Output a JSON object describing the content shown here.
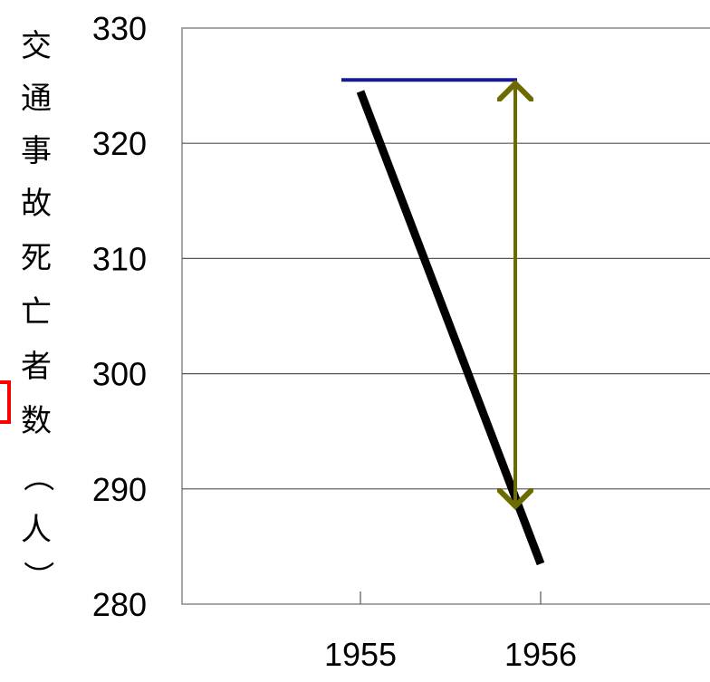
{
  "chart_data": {
    "type": "line",
    "title": "",
    "xlabel": "",
    "ylabel": "交通事故死亡者数（人）",
    "categories": [
      "1955",
      "1956"
    ],
    "series": [
      {
        "values": [
          324.5,
          283.5
        ],
        "color": "#000000"
      }
    ],
    "ylim": [
      280,
      330
    ],
    "yticks": [
      280,
      290,
      300,
      310,
      320,
      330
    ],
    "grid": true,
    "annotations": [
      {
        "type": "horizontal-line",
        "y": 325.5,
        "color": "#1a1a8c"
      },
      {
        "type": "double-arrow",
        "x": "1956",
        "from": 325.5,
        "to": 288.5,
        "color": "#6b6b00"
      }
    ],
    "accent": {
      "partial_marker_color": "#ff0000"
    }
  }
}
